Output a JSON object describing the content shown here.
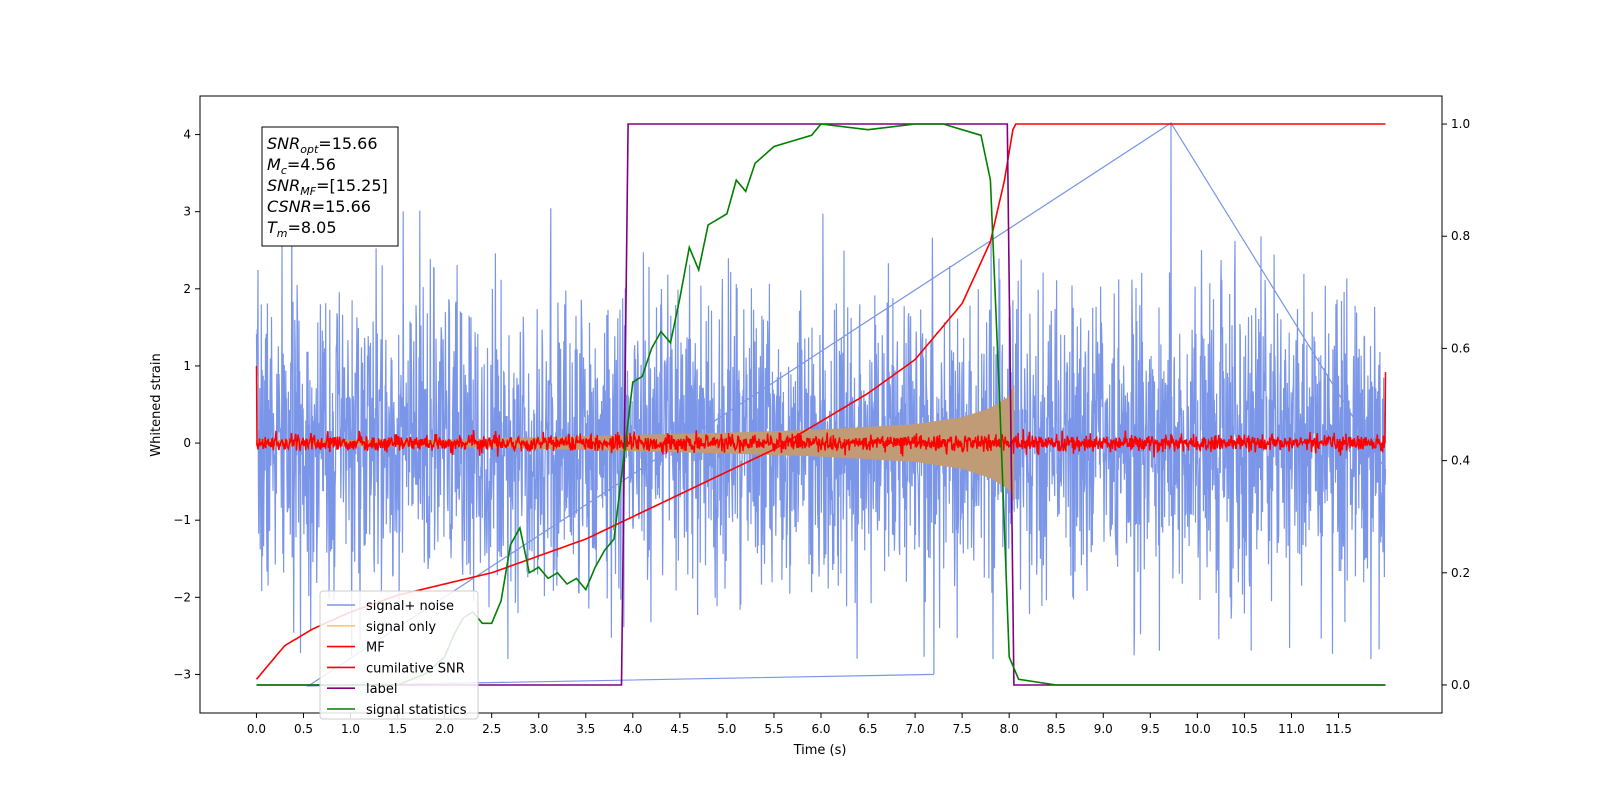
{
  "chart_data": {
    "type": "line",
    "xlabel": "Time (s)",
    "ylabel_left": "Whitened strain",
    "xlim": [
      -0.6,
      12.6
    ],
    "ylim_left": [
      -3.5,
      4.5
    ],
    "ylim_right": [
      -0.05,
      1.05
    ],
    "x_ticks": [
      "0.0",
      "0.5",
      "1.0",
      "1.5",
      "2.0",
      "2.5",
      "3.0",
      "3.5",
      "4.0",
      "4.5",
      "5.0",
      "5.5",
      "6.0",
      "6.5",
      "7.0",
      "7.5",
      "8.0",
      "8.5",
      "9.0",
      "9.5",
      "10.0",
      "10.5",
      "11.0",
      "11.5"
    ],
    "y_ticks_left": [
      "−3",
      "−2",
      "−1",
      "0",
      "1",
      "2",
      "3",
      "4"
    ],
    "y_ticks_right": [
      "0.0",
      "0.2",
      "0.4",
      "0.6",
      "0.8",
      "1.0"
    ],
    "grid": false,
    "legend_position": "lower-left",
    "annotation": {
      "snr_opt": {
        "base": "SNR",
        "sub": "opt",
        "value": "=15.66"
      },
      "mc": {
        "base": "M",
        "sub": "c",
        "value": "=4.56"
      },
      "snr_mf": {
        "base": "SNR",
        "sub": "MF",
        "value": "=[15.25]"
      },
      "csnr": {
        "base": "CSNR",
        "sub": "",
        "value": "=15.66"
      },
      "tm": {
        "base": "T",
        "sub": "m",
        "value": "=8.05"
      }
    },
    "series": [
      {
        "name": "signal+ noise",
        "color": "#7b96e8",
        "axis": "left",
        "x_range": [
          0,
          12
        ],
        "typical_amplitude": 1.3,
        "spikes": [
          {
            "x": 9.72,
            "y": 4.15
          },
          {
            "x": 0.55,
            "y": -3.15
          },
          {
            "x": 7.2,
            "y": -3.0
          }
        ]
      },
      {
        "name": "signal only",
        "color": "#c09b75",
        "axis": "left",
        "x_range": [
          0,
          8.05
        ],
        "envelope": [
          [
            0.0,
            0.03
          ],
          [
            2.0,
            0.04
          ],
          [
            4.0,
            0.1
          ],
          [
            5.0,
            0.13
          ],
          [
            6.0,
            0.17
          ],
          [
            7.0,
            0.24
          ],
          [
            7.5,
            0.33
          ],
          [
            7.8,
            0.45
          ],
          [
            8.0,
            0.6
          ],
          [
            8.05,
            0.75
          ]
        ]
      },
      {
        "name": "MF",
        "color": "#ff0000",
        "axis": "left",
        "x_range": [
          0,
          12
        ],
        "typical_amplitude": 0.12,
        "endpoints": [
          {
            "x": 0.0,
            "y": 1.0
          },
          {
            "x": 12.0,
            "y": 0.92
          }
        ]
      },
      {
        "name": "cumilative SNR",
        "color": "#ff0000",
        "axis": "right",
        "points": [
          [
            0.0,
            0.01
          ],
          [
            0.3,
            0.07
          ],
          [
            0.6,
            0.1
          ],
          [
            1.0,
            0.13
          ],
          [
            1.5,
            0.16
          ],
          [
            2.0,
            0.18
          ],
          [
            2.5,
            0.2
          ],
          [
            3.0,
            0.23
          ],
          [
            3.5,
            0.26
          ],
          [
            4.0,
            0.3
          ],
          [
            4.5,
            0.34
          ],
          [
            5.0,
            0.38
          ],
          [
            5.5,
            0.42
          ],
          [
            6.0,
            0.47
          ],
          [
            6.5,
            0.52
          ],
          [
            7.0,
            0.58
          ],
          [
            7.5,
            0.68
          ],
          [
            7.8,
            0.79
          ],
          [
            7.95,
            0.9
          ],
          [
            8.05,
            1.0
          ],
          [
            12.0,
            1.0
          ]
        ]
      },
      {
        "name": "label",
        "color": "#800080",
        "axis": "right",
        "points": [
          [
            0.0,
            0.0
          ],
          [
            3.88,
            0.0
          ],
          [
            3.95,
            1.0
          ],
          [
            7.98,
            1.0
          ],
          [
            8.05,
            0.0
          ],
          [
            12.0,
            0.0
          ]
        ]
      },
      {
        "name": "signal statistics",
        "color": "#008000",
        "axis": "right",
        "points": [
          [
            0.0,
            0.0
          ],
          [
            1.5,
            0.0
          ],
          [
            1.8,
            0.02
          ],
          [
            2.0,
            0.05
          ],
          [
            2.1,
            0.09
          ],
          [
            2.2,
            0.12
          ],
          [
            2.3,
            0.13
          ],
          [
            2.4,
            0.11
          ],
          [
            2.5,
            0.11
          ],
          [
            2.6,
            0.15
          ],
          [
            2.7,
            0.25
          ],
          [
            2.8,
            0.28
          ],
          [
            2.9,
            0.2
          ],
          [
            3.0,
            0.21
          ],
          [
            3.1,
            0.19
          ],
          [
            3.2,
            0.2
          ],
          [
            3.3,
            0.18
          ],
          [
            3.4,
            0.19
          ],
          [
            3.5,
            0.17
          ],
          [
            3.6,
            0.21
          ],
          [
            3.7,
            0.24
          ],
          [
            3.8,
            0.26
          ],
          [
            3.9,
            0.4
          ],
          [
            4.0,
            0.54
          ],
          [
            4.1,
            0.55
          ],
          [
            4.2,
            0.6
          ],
          [
            4.3,
            0.63
          ],
          [
            4.4,
            0.61
          ],
          [
            4.5,
            0.69
          ],
          [
            4.6,
            0.78
          ],
          [
            4.7,
            0.74
          ],
          [
            4.8,
            0.82
          ],
          [
            5.0,
            0.84
          ],
          [
            5.1,
            0.9
          ],
          [
            5.2,
            0.88
          ],
          [
            5.3,
            0.93
          ],
          [
            5.5,
            0.96
          ],
          [
            5.7,
            0.97
          ],
          [
            5.9,
            0.98
          ],
          [
            6.0,
            1.0
          ],
          [
            6.5,
            0.99
          ],
          [
            7.0,
            1.0
          ],
          [
            7.3,
            1.0
          ],
          [
            7.5,
            0.99
          ],
          [
            7.7,
            0.98
          ],
          [
            7.8,
            0.9
          ],
          [
            7.9,
            0.5
          ],
          [
            8.0,
            0.05
          ],
          [
            8.1,
            0.01
          ],
          [
            8.5,
            0.0
          ],
          [
            12.0,
            0.0
          ]
        ]
      }
    ]
  }
}
